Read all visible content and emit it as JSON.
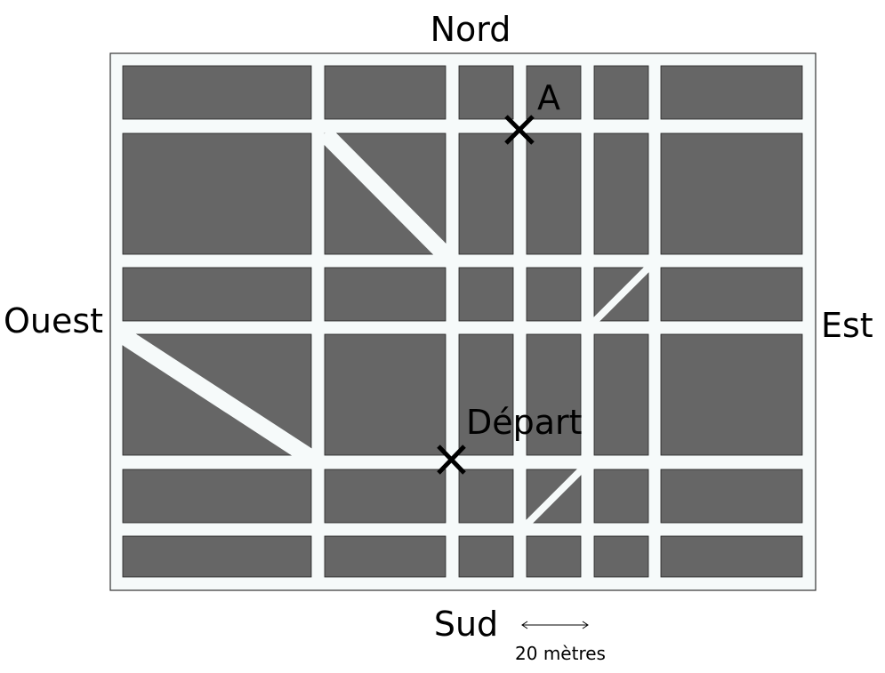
{
  "labels": {
    "north": "Nord",
    "south": "Sud",
    "west": "Ouest",
    "east": "Est"
  },
  "markers": {
    "point_a": "A",
    "start": "Départ"
  },
  "scale_bar": {
    "text": "20 mètres"
  },
  "colors": {
    "block_fill": "#666666",
    "street_fill": "#f6fafa",
    "marker": "#000000",
    "frame_border": "#333333"
  }
}
